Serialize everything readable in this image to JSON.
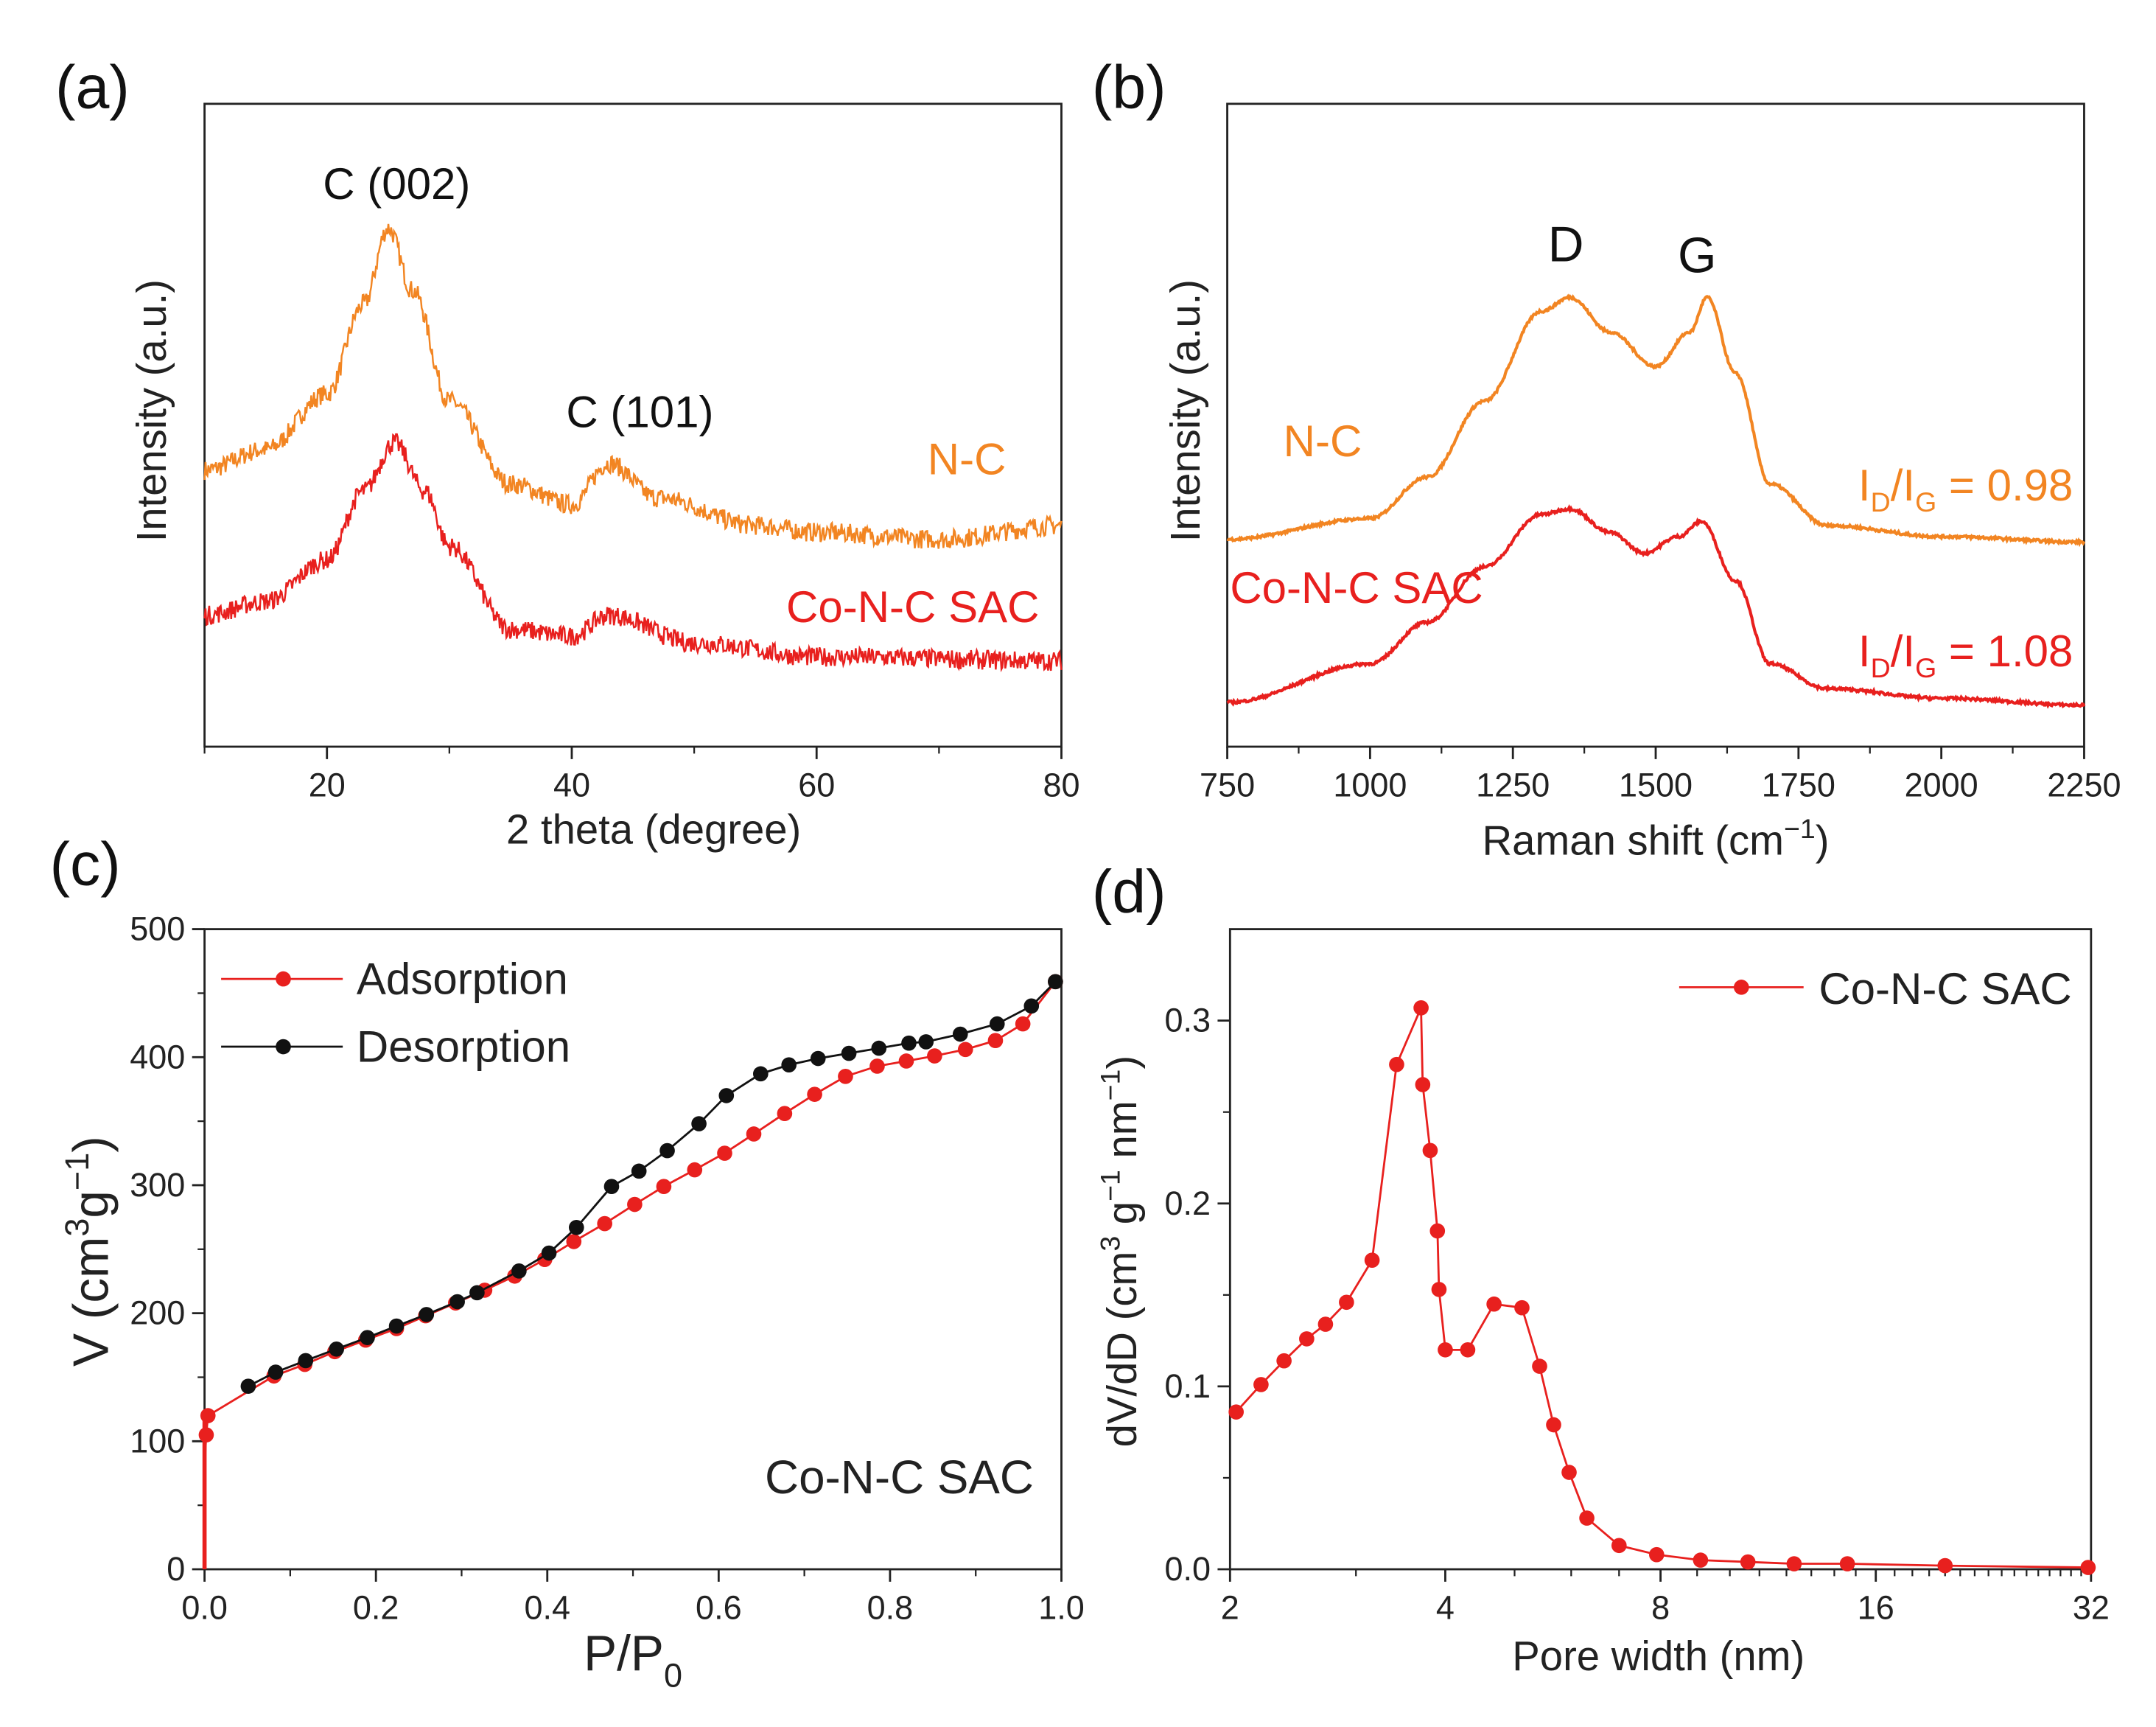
{
  "colors": {
    "nc": "#f28522",
    "conc": "#e8201e",
    "black": "#111111"
  },
  "panels": {
    "a": {
      "label": "(a)",
      "xlabel": "2 theta (degree)",
      "ylabel": "Intensity (a.u.)",
      "peak1": "C (002)",
      "peak2": "C (101)",
      "series_nc": "N-C",
      "series_conc": "Co-N-C SAC"
    },
    "b": {
      "label": "(b)",
      "xlabel_main": "Raman shift (cm",
      "xlabel_sup": "−1",
      "xlabel_end": ")",
      "ylabel": "Intensity (a.u.)",
      "peakD": "D",
      "peakG": "G",
      "series_nc": "N-C",
      "series_conc": "Co-N-C SAC",
      "ratio_nc": {
        "I": "I",
        "D": "D",
        "slash": "/I",
        "G": "G",
        "val": " = 0.98"
      },
      "ratio_conc": {
        "I": "I",
        "D": "D",
        "slash": "/I",
        "G": "G",
        "val": " = 1.08"
      }
    },
    "c": {
      "label": "(c)",
      "xlabel_main": "P/P",
      "xlabel_sub": "0",
      "ylabel_main": "V (cm",
      "ylabel_sup1": "3",
      "ylabel_mid": "g",
      "ylabel_sup2": "−1",
      "ylabel_end": ")",
      "legend_ads": "Adsorption",
      "legend_des": "Desorption",
      "annotation": "Co-N-C SAC"
    },
    "d": {
      "label": "(d)",
      "xlabel": "Pore width (nm)",
      "ylabel_main": "dV/dD (cm",
      "ylabel_sup1": "3",
      "ylabel_mid": " g",
      "ylabel_sup2": "−1",
      "ylabel_mid2": " nm",
      "ylabel_sup3": "−1",
      "ylabel_end": ")",
      "legend": "Co-N-C SAC"
    }
  },
  "chart_data": [
    {
      "panel": "a",
      "type": "line",
      "xlim": [
        10,
        80
      ],
      "xticks": [
        20,
        40,
        60,
        80
      ],
      "yticks": [],
      "xlabel": "2 theta (degree)",
      "ylabel": "Intensity (a.u.)",
      "series": [
        {
          "name": "N-C",
          "x": [
            10,
            15,
            20,
            23,
            25,
            27,
            30,
            35,
            40,
            43,
            47,
            55,
            60,
            70,
            80
          ],
          "y": [
            200,
            215,
            255,
            320,
            375,
            330,
            250,
            190,
            175,
            205,
            180,
            160,
            155,
            150,
            160
          ]
        },
        {
          "name": "Co-N-C SAC",
          "x": [
            10,
            15,
            20,
            23,
            25.5,
            28,
            30,
            35,
            40,
            43,
            50,
            60,
            80
          ],
          "y": [
            95,
            105,
            135,
            185,
            220,
            185,
            145,
            85,
            80,
            95,
            75,
            65,
            62
          ]
        }
      ]
    },
    {
      "panel": "b",
      "type": "line",
      "xlim": [
        750,
        2250
      ],
      "xticks": [
        750,
        1000,
        1250,
        1500,
        1750,
        2000,
        2250
      ],
      "yticks": [],
      "xlabel": "Raman shift (cm−1)",
      "ylabel": "Intensity (a.u.)",
      "series": [
        {
          "name": "N-C",
          "x": [
            750,
            1000,
            1100,
            1200,
            1300,
            1350,
            1420,
            1500,
            1560,
            1590,
            1640,
            1700,
            1800,
            2000,
            2250
          ],
          "y": [
            150,
            165,
            195,
            250,
            315,
            325,
            300,
            275,
            300,
            325,
            270,
            190,
            160,
            152,
            148
          ]
        },
        {
          "name": "Co-N-C SAC",
          "x": [
            750,
            1000,
            1100,
            1200,
            1300,
            1350,
            1420,
            1480,
            1540,
            1580,
            1640,
            1700,
            1800,
            2000,
            2250
          ],
          "y": [
            32,
            60,
            90,
            130,
            168,
            172,
            155,
            140,
            152,
            163,
            120,
            60,
            42,
            35,
            30
          ]
        }
      ]
    },
    {
      "panel": "c",
      "type": "line",
      "xlim": [
        0,
        1.0
      ],
      "ylim": [
        0,
        500
      ],
      "xticks": [
        0,
        0.2,
        0.4,
        0.6,
        0.8,
        1.0
      ],
      "xticklabels": [
        "0.0",
        "0.2",
        "0.4",
        "0.6",
        "0.8",
        "1.0"
      ],
      "yticks": [
        0,
        100,
        200,
        300,
        400,
        500
      ],
      "xlabel": "P/P0",
      "ylabel": "V (cm3g−1)",
      "series": [
        {
          "name": "Adsorption",
          "x": [
            0.0,
            0.0,
            0.0,
            0.002,
            0.004,
            0.081,
            0.117,
            0.152,
            0.188,
            0.224,
            0.258,
            0.293,
            0.327,
            0.362,
            0.397,
            0.431,
            0.467,
            0.502,
            0.536,
            0.572,
            0.607,
            0.641,
            0.677,
            0.712,
            0.748,
            0.785,
            0.819,
            0.852,
            0.888,
            0.923,
            0.955,
            0.993
          ],
          "y": [
            0,
            40,
            80,
            105,
            120,
            151,
            160,
            170,
            179,
            188,
            198,
            208,
            218,
            229,
            242,
            256,
            270,
            285,
            299,
            312,
            325,
            340,
            356,
            371,
            385,
            393,
            397,
            401,
            406,
            413,
            426,
            459
          ]
        },
        {
          "name": "Desorption",
          "x": [
            0.993,
            0.965,
            0.925,
            0.882,
            0.842,
            0.822,
            0.787,
            0.752,
            0.716,
            0.682,
            0.649,
            0.609,
            0.577,
            0.54,
            0.507,
            0.475,
            0.434,
            0.402,
            0.367,
            0.318,
            0.295,
            0.259,
            0.224,
            0.19,
            0.154,
            0.118,
            0.083,
            0.051
          ],
          "y": [
            459,
            440,
            426,
            418,
            412,
            411,
            407,
            403,
            399,
            394,
            387,
            370,
            348,
            327,
            311,
            299,
            267,
            247,
            233,
            216,
            209,
            199,
            190,
            181,
            172,
            163,
            154,
            143
          ]
        }
      ]
    },
    {
      "panel": "d",
      "type": "line",
      "xscale": "log2",
      "xlim": [
        2,
        32
      ],
      "ylim": [
        0,
        0.35
      ],
      "xticks": [
        2,
        4,
        8,
        16,
        32
      ],
      "yticks": [
        0,
        0.1,
        0.2,
        0.3
      ],
      "yticklabels": [
        "0.0",
        "0.1",
        "0.2",
        "0.3"
      ],
      "xlabel": "Pore width (nm)",
      "ylabel": "dV/dD (cm3 g−1 nm−1)",
      "series": [
        {
          "name": "Co-N-C SAC",
          "x": [
            2.04,
            2.21,
            2.38,
            2.56,
            2.72,
            2.91,
            3.16,
            3.42,
            3.7,
            3.72,
            3.81,
            3.9,
            3.92,
            4.0,
            4.3,
            4.68,
            5.12,
            5.42,
            5.67,
            5.96,
            6.31,
            7.0,
            7.9,
            9.1,
            10.6,
            12.3,
            14.6,
            20.0,
            31.7
          ],
          "y": [
            0.086,
            0.101,
            0.114,
            0.126,
            0.134,
            0.146,
            0.169,
            0.276,
            0.307,
            0.265,
            0.229,
            0.185,
            0.153,
            0.12,
            0.12,
            0.145,
            0.143,
            0.111,
            0.079,
            0.053,
            0.028,
            0.013,
            0.008,
            0.005,
            0.004,
            0.003,
            0.003,
            0.002,
            0.001
          ]
        }
      ]
    }
  ]
}
